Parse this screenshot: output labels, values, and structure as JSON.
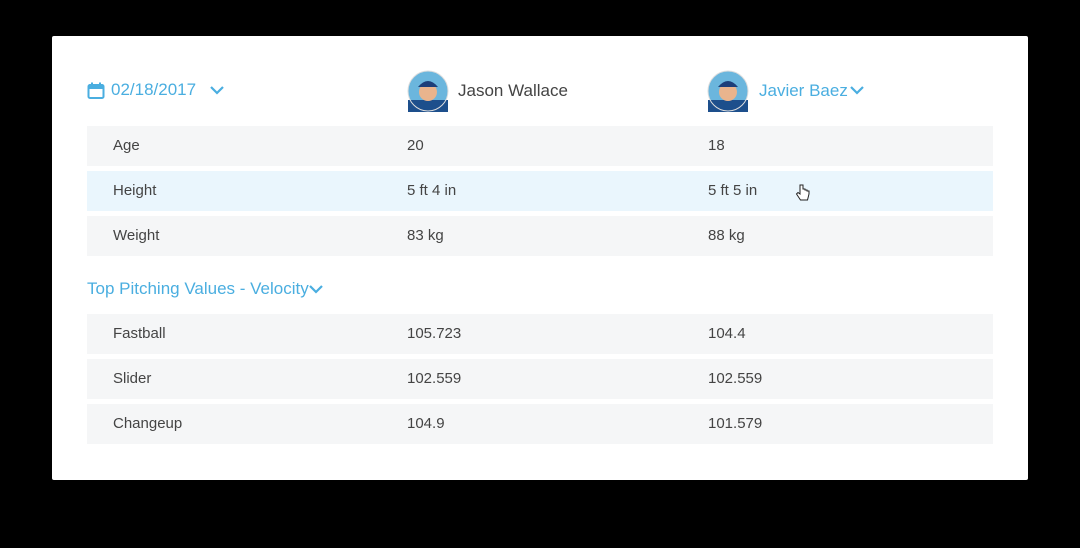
{
  "header": {
    "date": "02/18/2017",
    "players": [
      "Jason Wallace",
      "Javier Baez"
    ]
  },
  "table": {
    "rows": [
      [
        "Age",
        "20",
        "18"
      ],
      [
        "Height",
        "5 ft 4 in",
        "5 ft 5 in"
      ],
      [
        "Weight",
        "83 kg",
        "88 kg"
      ]
    ]
  },
  "section": {
    "title": "Top Pitching Values - Velocity",
    "rows": [
      [
        "Fastball",
        "105.723",
        "104.4"
      ],
      [
        "Slider",
        "102.559",
        "102.559"
      ],
      [
        "Changeup",
        "104.9",
        "101.579"
      ]
    ]
  }
}
